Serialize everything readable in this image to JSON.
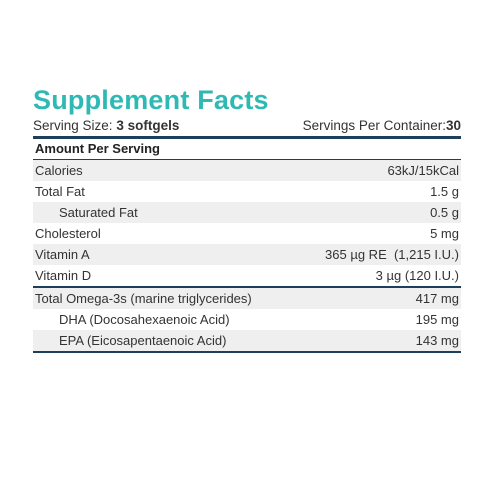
{
  "title": "Supplement Facts",
  "serving": {
    "size_label": "Serving Size:",
    "size_value": "3 softgels",
    "per_container_label": "Servings Per Container:",
    "per_container_value": "30"
  },
  "amount_header": "Amount Per Serving",
  "rows": [
    {
      "name": "Calories",
      "value": "63kJ/15kCal"
    },
    {
      "name": "Total Fat",
      "value": "1.5 g"
    },
    {
      "name": "Saturated Fat",
      "value": "0.5 g"
    },
    {
      "name": "Cholesterol",
      "value": "5 mg"
    },
    {
      "name": "Vitamin A",
      "value": "365 µg RE  (1,215 I.U.)"
    },
    {
      "name": "Vitamin D",
      "value": "3 µg (120 I.U.)"
    }
  ],
  "omega_rows": [
    {
      "name": "Total Omega-3s (marine triglycerides)",
      "value": "417 mg"
    },
    {
      "name": "DHA (Docosahexaenoic Acid)",
      "value": "195 mg"
    },
    {
      "name": "EPA (Eicosapentaenoic Acid)",
      "value": "143 mg"
    }
  ]
}
